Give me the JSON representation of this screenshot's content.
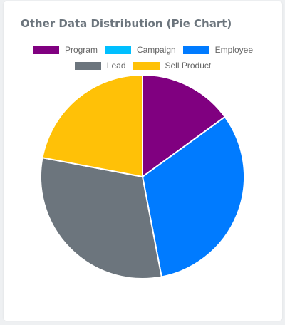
{
  "card": {
    "title": "Other Data Distribution (Pie Chart)"
  },
  "chart_data": {
    "type": "pie",
    "title": "Other Data Distribution (Pie Chart)",
    "categories": [
      "Program",
      "Campaign",
      "Employee",
      "Lead",
      "Sell Product"
    ],
    "values": [
      15,
      0,
      32,
      31,
      22
    ],
    "colors": [
      "#800080",
      "#00bfff",
      "#007bff",
      "#6c757d",
      "#ffc107"
    ],
    "legend": "top",
    "legend_rows": [
      [
        "Program",
        "Campaign",
        "Employee"
      ],
      [
        "Lead",
        "Sell Product"
      ]
    ]
  }
}
